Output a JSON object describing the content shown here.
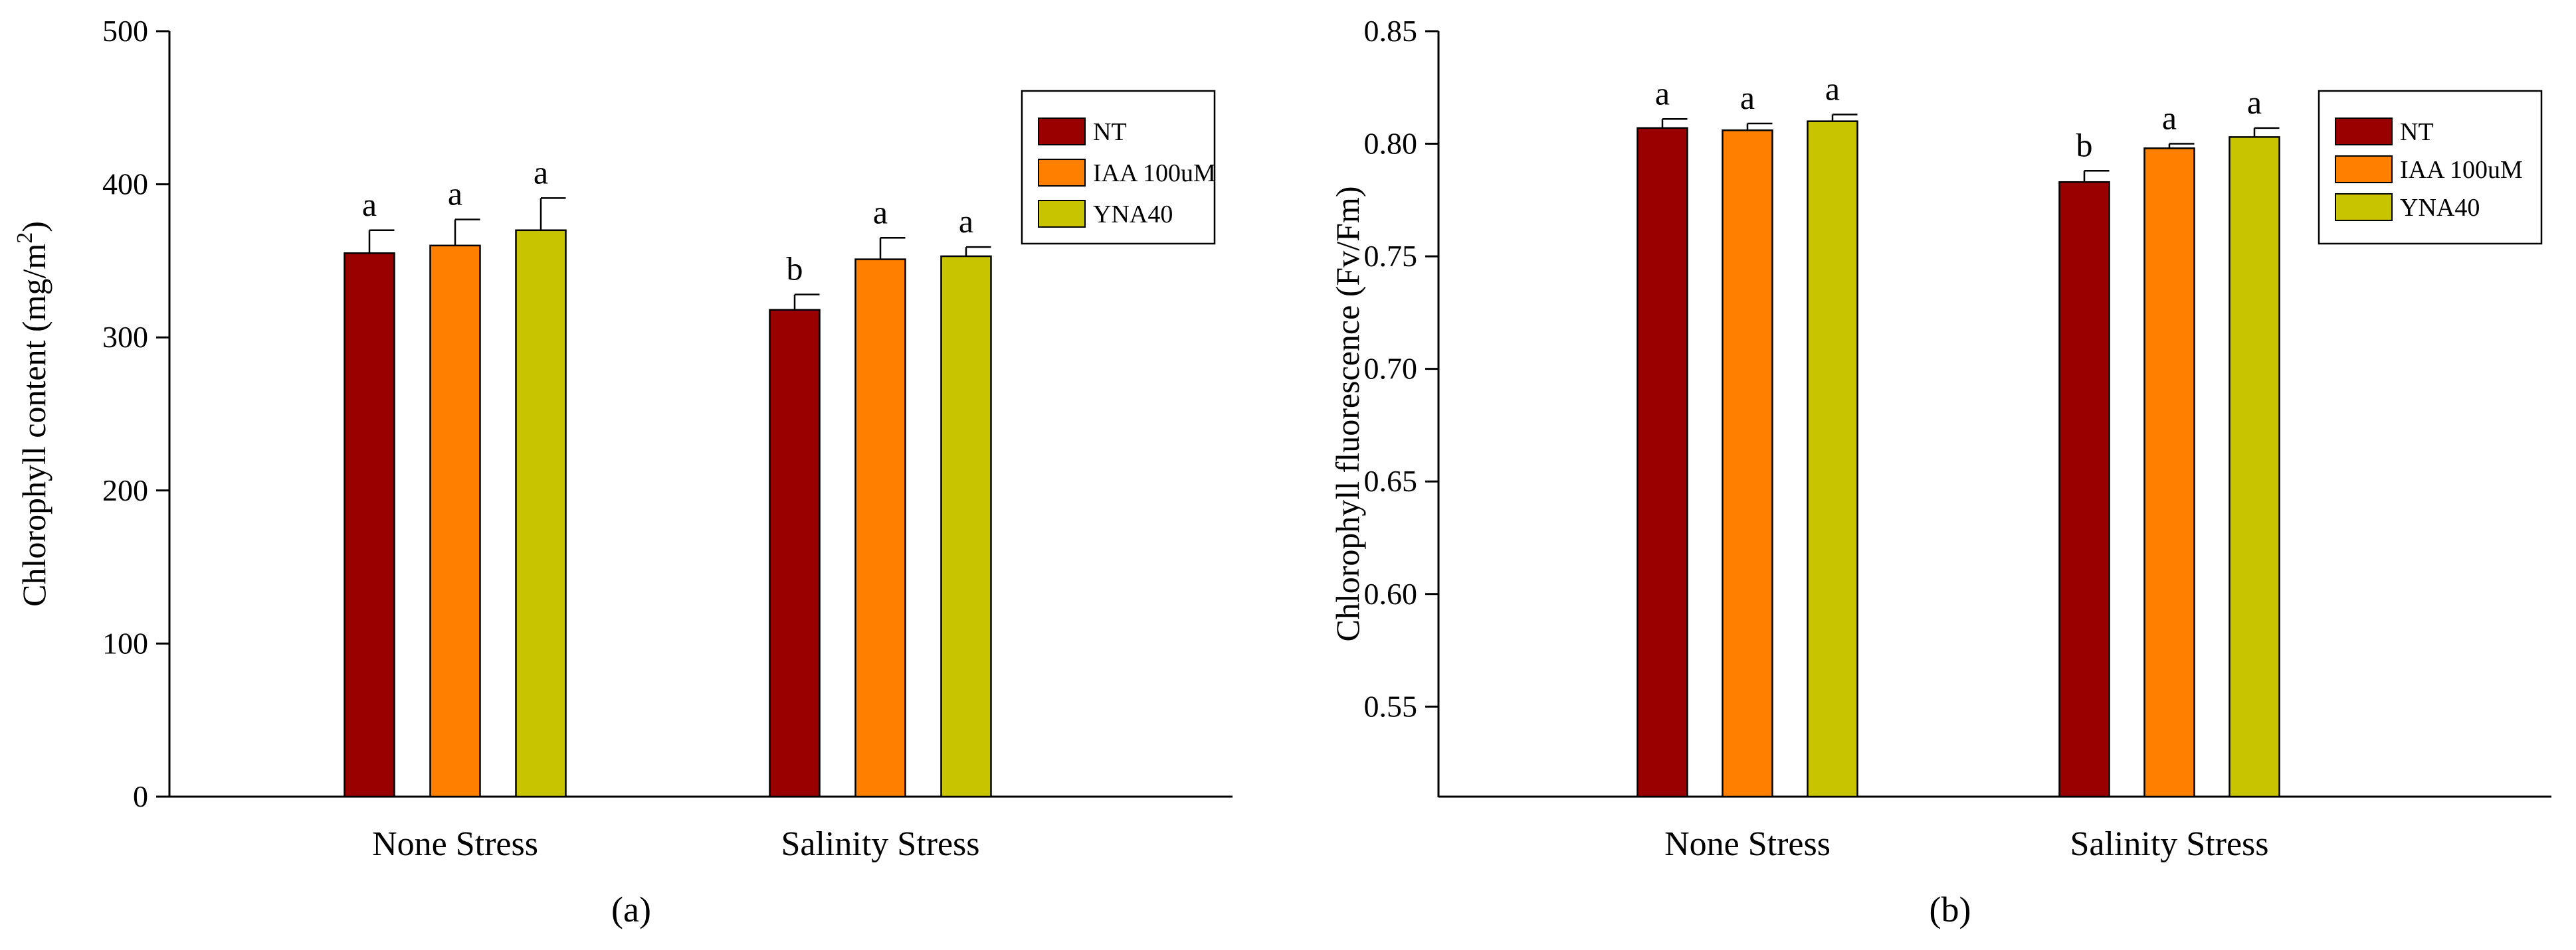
{
  "chart_data": [
    {
      "type": "bar",
      "panel_label": "(a)",
      "ylabel": "Chlorophyll content (mg/m",
      "ylabel_sup": "2",
      "ylabel_close": ")",
      "ylim": [
        0,
        500
      ],
      "yticks": [
        "0",
        "100",
        "200",
        "300",
        "400",
        "500"
      ],
      "ytick_values": [
        0,
        100,
        200,
        300,
        400,
        500
      ],
      "categories": [
        "None Stress",
        "Salinity Stress"
      ],
      "legend_position": "top-right",
      "series": [
        {
          "name": "NT",
          "color": "#990000",
          "values": [
            355,
            318
          ],
          "errors": [
            15,
            10
          ],
          "letters": [
            "a",
            "b"
          ]
        },
        {
          "name": "IAA 100uM",
          "color": "#ff8000",
          "values": [
            360,
            351
          ],
          "errors": [
            17,
            14
          ],
          "letters": [
            "a",
            "a"
          ]
        },
        {
          "name": "YNA40",
          "color": "#c8c400",
          "values": [
            370,
            353
          ],
          "errors": [
            21,
            6
          ],
          "letters": [
            "a",
            "a"
          ]
        }
      ]
    },
    {
      "type": "bar",
      "panel_label": "(b)",
      "ylabel": "Chlorophyll fluorescence (Fv/Fm)",
      "ylim": [
        0.51,
        0.85
      ],
      "yticks": [
        "0.55",
        "0.60",
        "0.65",
        "0.70",
        "0.75",
        "0.80",
        "0.85"
      ],
      "ytick_values": [
        0.55,
        0.6,
        0.65,
        0.7,
        0.75,
        0.8,
        0.85
      ],
      "categories": [
        "None Stress",
        "Salinity Stress"
      ],
      "legend_position": "top-right",
      "series": [
        {
          "name": "NT",
          "color": "#990000",
          "values": [
            0.807,
            0.783
          ],
          "errors": [
            0.004,
            0.005
          ],
          "letters": [
            "a",
            "b"
          ]
        },
        {
          "name": "IAA 100uM",
          "color": "#ff8000",
          "values": [
            0.806,
            0.798
          ],
          "errors": [
            0.003,
            0.002
          ],
          "letters": [
            "a",
            "a"
          ]
        },
        {
          "name": "YNA40",
          "color": "#c8c400",
          "values": [
            0.81,
            0.803
          ],
          "errors": [
            0.003,
            0.004
          ],
          "letters": [
            "a",
            "a"
          ]
        }
      ]
    }
  ]
}
